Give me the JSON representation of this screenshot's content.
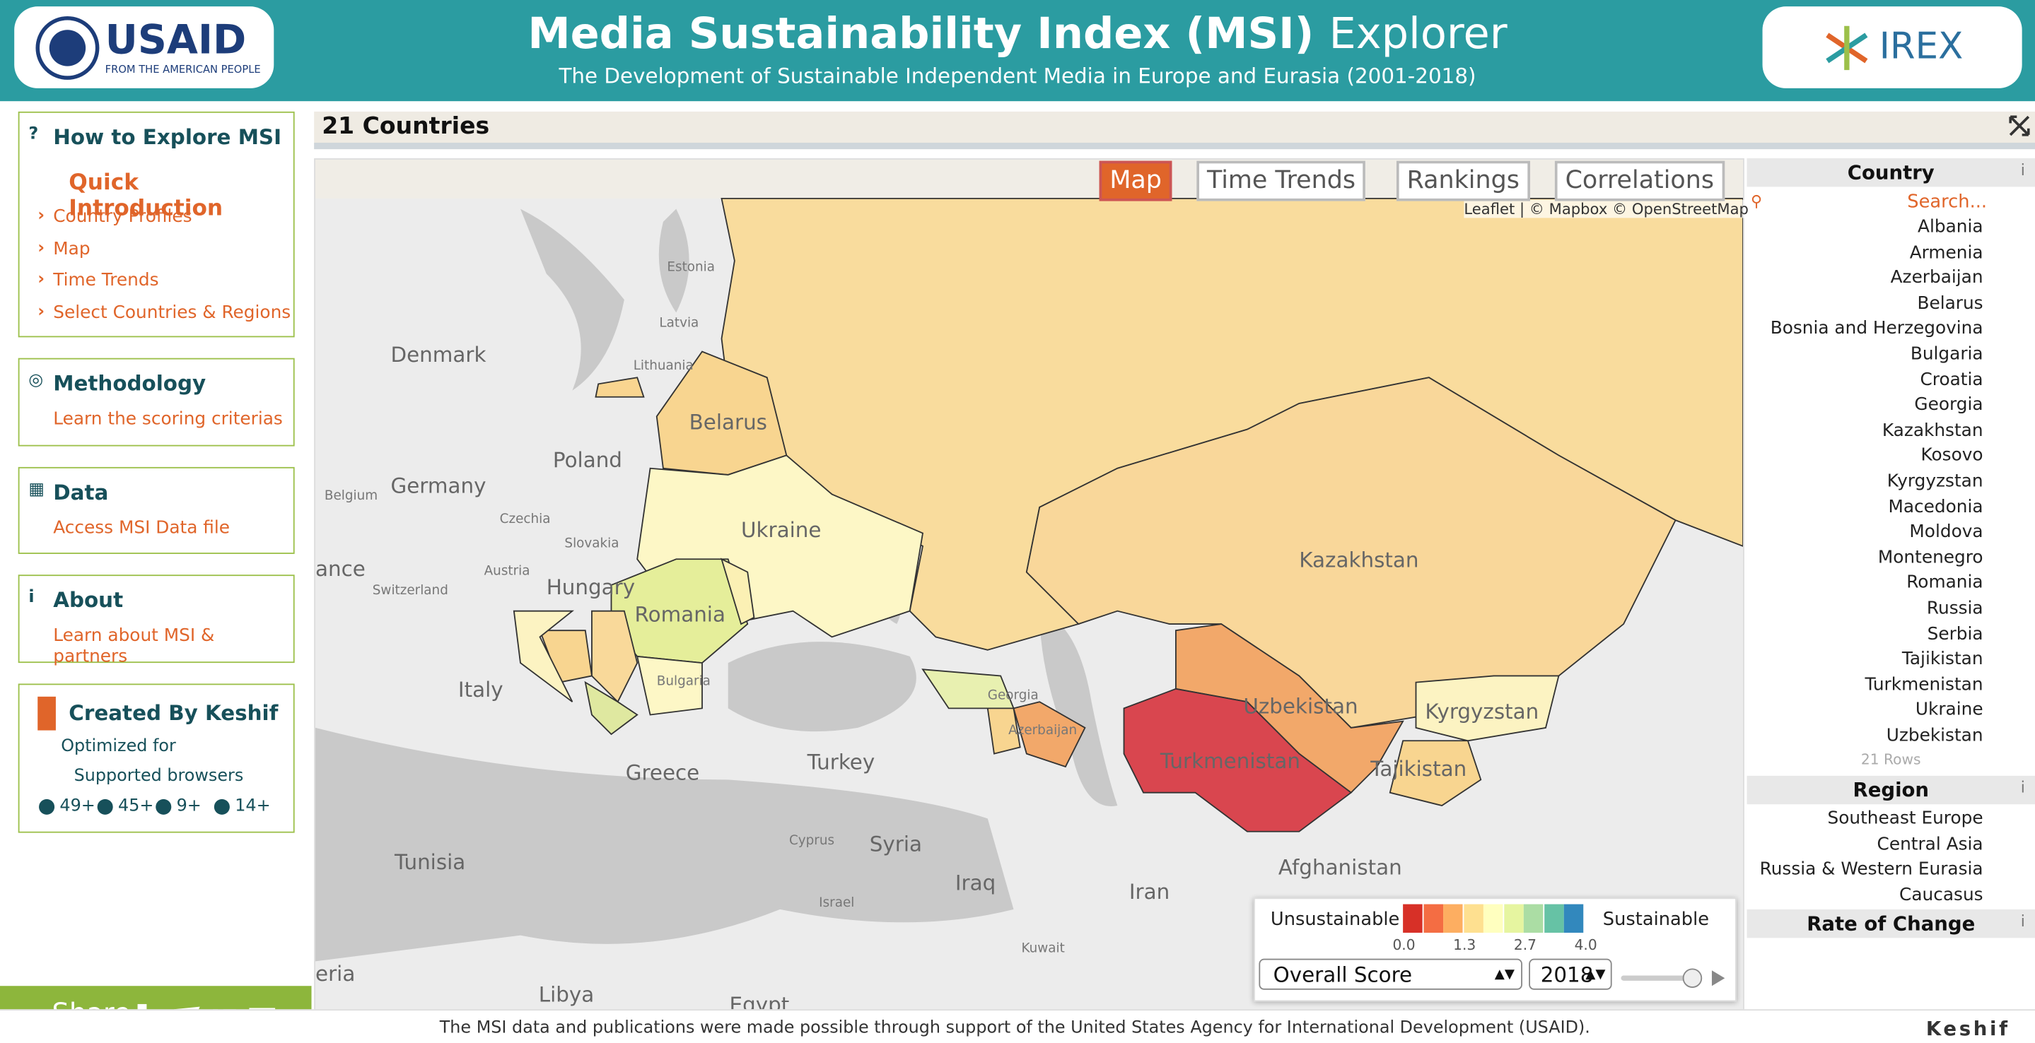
{
  "header": {
    "title": "Media Sustainability Index (MSI)",
    "title_suffix": "Explorer",
    "subtitle": "The Development of Sustainable Independent Media in Europe and Eurasia (2001-2018)",
    "left_logo": {
      "name": "USAID",
      "tagline": "FROM THE AMERICAN PEOPLE"
    },
    "right_logo": "IREX"
  },
  "sidebar": {
    "sections": [
      {
        "title": "How to Explore MSI",
        "links": [
          "Quick Introduction",
          "Country Profiles",
          "Map",
          "Time Trends",
          "Select Countries & Regions"
        ]
      },
      {
        "title": "Methodology",
        "links": [
          "Learn the scoring criterias"
        ]
      },
      {
        "title": "Data",
        "links": [
          "Access MSI Data file"
        ]
      },
      {
        "title": "About",
        "links": [
          "Learn about MSI & partners"
        ]
      }
    ],
    "keshif": {
      "title": "Created By Keshif",
      "optimized": "Optimized for",
      "supported": "Supported browsers",
      "browsers": [
        "49+",
        "45+",
        "9+",
        "14+"
      ]
    },
    "share": "Share"
  },
  "panel": {
    "title": "21 Countries",
    "tabs": [
      "Map",
      "Time Trends",
      "Rankings",
      "Correlations"
    ],
    "attribution": "Leaflet | © Mapbox © OpenStreetMap",
    "map_labels": [
      "Estonia",
      "Latvia",
      "Lithuania",
      "Denmark",
      "Belarus",
      "Poland",
      "Germany",
      "Belgium",
      "Czechia",
      "Slovakia",
      "Ukraine",
      "Kazakhstan",
      "Austria",
      "Switzerland",
      "Hungary",
      "Romania",
      "ance",
      "Italy",
      "Bulgaria",
      "Georgia",
      "Azerbaijan",
      "Uzbekistan",
      "Kyrgyzstan",
      "Turkmenistan",
      "Tajikistan",
      "Greece",
      "Turkey",
      "Tunisia",
      "Cyprus",
      "Syria",
      "Iraq",
      "Iran",
      "Afghanistan",
      "Israel",
      "Kuwait",
      "eria",
      "Libya",
      "Egypt"
    ],
    "legend": {
      "low": "Unsustainable",
      "high": "Sustainable",
      "ticks": [
        "0.0",
        "1.3",
        "2.7",
        "4.0"
      ],
      "measure": "Overall Score",
      "year": "2018"
    }
  },
  "filters": {
    "country": {
      "title": "Country",
      "search": "Search...",
      "items": [
        "Albania",
        "Armenia",
        "Azerbaijan",
        "Belarus",
        "Bosnia and Herzegovina",
        "Bulgaria",
        "Croatia",
        "Georgia",
        "Kazakhstan",
        "Kosovo",
        "Kyrgyzstan",
        "Macedonia",
        "Moldova",
        "Montenegro",
        "Romania",
        "Russia",
        "Serbia",
        "Tajikistan",
        "Turkmenistan",
        "Ukraine",
        "Uzbekistan"
      ],
      "footer": "21 Rows"
    },
    "region": {
      "title": "Region",
      "items": [
        "Southeast Europe",
        "Central Asia",
        "Russia & Western Eurasia",
        "Caucasus"
      ]
    },
    "rate": {
      "title": "Rate of Change"
    }
  },
  "footer": {
    "note": "The MSI data and publications were made possible through support of the United States Agency for International Development (USAID).",
    "brand": "Keshif"
  }
}
